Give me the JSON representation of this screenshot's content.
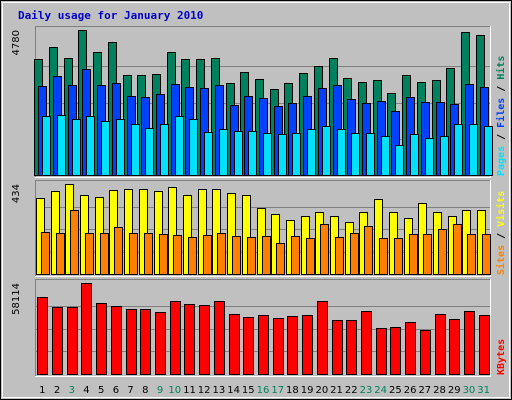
{
  "chart_data": {
    "type": "bar",
    "title": "Daily usage for January 2010",
    "categories": [
      "1",
      "2",
      "3",
      "4",
      "5",
      "6",
      "7",
      "8",
      "9",
      "10",
      "11",
      "12",
      "13",
      "14",
      "15",
      "16",
      "17",
      "18",
      "19",
      "20",
      "21",
      "22",
      "23",
      "24",
      "25",
      "26",
      "27",
      "28",
      "29",
      "30",
      "31"
    ],
    "weekend_days": [
      "3",
      "9",
      "10",
      "16",
      "17",
      "23",
      "24",
      "30",
      "31"
    ],
    "panels": [
      {
        "name": "hits",
        "max_label": "4780",
        "ymax": 4780,
        "legend": [
          {
            "text": "Pages",
            "color": "#00e0ff"
          },
          {
            "text": "Files",
            "color": "#0040ff"
          },
          {
            "text": "Hits",
            "color": "#00805c"
          }
        ],
        "series": [
          {
            "name": "Hits",
            "color": "#00805c",
            "values": [
              3820,
              4220,
              3860,
              4780,
              4060,
              4380,
              3300,
              3300,
              3340,
              4060,
              3840,
              3820,
              3860,
              3040,
              3400,
              3160,
              2840,
              3040,
              3360,
              3580,
              3860,
              3200,
              3080,
              3120,
              2700,
              3300,
              3080,
              3120,
              3520,
              4720,
              4600
            ]
          },
          {
            "name": "Files",
            "color": "#0040ff",
            "values": [
              2920,
              3260,
              2960,
              3500,
              2960,
              3020,
              2620,
              2580,
              2660,
              3000,
              2900,
              2860,
              2980,
              2320,
              2620,
              2540,
              2280,
              2380,
              2600,
              2860,
              2980,
              2520,
              2360,
              2440,
              2100,
              2560,
              2400,
              2420,
              2340,
              3000,
              2900
            ]
          },
          {
            "name": "Pages",
            "color": "#00e0ff",
            "values": [
              1960,
              1990,
              1830,
              1930,
              1770,
              1860,
              1680,
              1550,
              1680,
              1950,
              1860,
              1430,
              1500,
              1440,
              1460,
              1400,
              1360,
              1390,
              1500,
              1620,
              1500,
              1400,
              1380,
              1270,
              1000,
              1350,
              1230,
              1300,
              1680,
              1690,
              1600
            ]
          }
        ]
      },
      {
        "name": "visits",
        "max_label": "434",
        "ymax": 434,
        "legend": [
          {
            "text": "Sites",
            "color": "#ff8000"
          },
          {
            "text": "Visits",
            "color": "#ffff00"
          }
        ],
        "series": [
          {
            "name": "Visits",
            "color": "#ffff00",
            "values": [
              368,
              400,
              434,
              380,
              370,
              406,
              412,
              412,
              400,
              420,
              380,
              408,
              410,
              390,
              380,
              320,
              290,
              260,
              280,
              300,
              280,
              250,
              300,
              360,
              300,
              270,
              340,
              300,
              280,
              310,
              310
            ]
          },
          {
            "name": "Sites",
            "color": "#ff8000",
            "values": [
              201,
              200,
              310,
              196,
              200,
              225,
              198,
              196,
              192,
              186,
              177,
              190,
              196,
              184,
              178,
              181,
              150,
              185,
              174,
              240,
              178,
              196,
              230,
              176,
              175,
              193,
              194,
              219,
              242,
              192,
              192
            ]
          }
        ]
      },
      {
        "name": "kbytes",
        "max_label": "58114",
        "ymax": 58114,
        "legend": [
          {
            "text": "KBytes",
            "color": "#ff0000"
          }
        ],
        "series": [
          {
            "name": "KBytes",
            "color": "#ff0000",
            "values": [
              48900,
              42500,
              42800,
              58114,
              45100,
              43300,
              41200,
              41600,
              39300,
              46400,
              44800,
              44300,
              46300,
              38500,
              36700,
              37600,
              35900,
              37200,
              37700,
              46400,
              34800,
              34800,
              40000,
              29500,
              29800,
              33300,
              28400,
              38500,
              35200,
              40500,
              37500
            ]
          }
        ]
      }
    ]
  }
}
